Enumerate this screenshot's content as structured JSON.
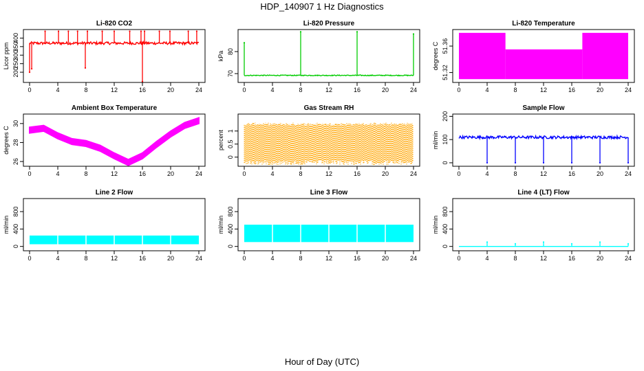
{
  "page": {
    "title": "HDP_140907  1 Hz Diagnostics",
    "xlabel": "Hour of Day (UTC)"
  },
  "chart_data": [
    {
      "type": "line",
      "title": "Li-820 CO2",
      "ylabel": "Licor ppm",
      "color": "#ff0000",
      "xlim": [
        0,
        24
      ],
      "ylim": [
        140,
        450
      ],
      "yticks": [
        200,
        250,
        300,
        350,
        400
      ],
      "baseline": 370,
      "noise": 8,
      "spikes": [
        {
          "x": 0.0,
          "y": 200
        },
        {
          "x": 0.3,
          "y": 220
        },
        {
          "x": 2.2,
          "y": 440
        },
        {
          "x": 4.1,
          "y": 440
        },
        {
          "x": 5.5,
          "y": 440
        },
        {
          "x": 6.8,
          "y": 440
        },
        {
          "x": 7.9,
          "y": 225
        },
        {
          "x": 8.2,
          "y": 440
        },
        {
          "x": 10.3,
          "y": 440
        },
        {
          "x": 12.0,
          "y": 440
        },
        {
          "x": 14.2,
          "y": 440
        },
        {
          "x": 15.8,
          "y": 440
        },
        {
          "x": 16.0,
          "y": 145
        },
        {
          "x": 16.3,
          "y": 440
        },
        {
          "x": 18.4,
          "y": 440
        },
        {
          "x": 19.9,
          "y": 440
        },
        {
          "x": 22.5,
          "y": 440
        },
        {
          "x": 23.7,
          "y": 440
        }
      ]
    },
    {
      "type": "line",
      "title": "Li-820 Pressure",
      "ylabel": "kPa",
      "color": "#00cc00",
      "xlim": [
        0,
        24
      ],
      "ylim": [
        66,
        90
      ],
      "yticks": [
        70,
        80
      ],
      "baseline": 69.2,
      "noise": 0.2,
      "spikes": [
        {
          "x": 0.0,
          "y": 84
        },
        {
          "x": 8.0,
          "y": 89
        },
        {
          "x": 16.0,
          "y": 89
        },
        {
          "x": 24.0,
          "y": 88
        }
      ]
    },
    {
      "type": "band",
      "title": "Li-820 Temperature",
      "ylabel": "degrees C",
      "color": "#ff00ff",
      "xlim": [
        0,
        24
      ],
      "ylim": [
        51.305,
        51.385
      ],
      "yticks": [
        51.32,
        51.36
      ],
      "segments": [
        {
          "x0": 0,
          "x1": 6.6,
          "low": 51.31,
          "high": 51.38
        },
        {
          "x0": 6.6,
          "x1": 17.5,
          "low": 51.31,
          "high": 51.355
        },
        {
          "x0": 17.5,
          "x1": 24,
          "low": 51.31,
          "high": 51.38
        }
      ]
    },
    {
      "type": "band",
      "title": "Ambient Box Temperature",
      "ylabel": "degrees C",
      "color": "#ff00ff",
      "xlim": [
        0,
        24
      ],
      "ylim": [
        25.5,
        31
      ],
      "yticks": [
        26,
        28,
        30
      ],
      "points": [
        {
          "x": 0,
          "y": 29.3
        },
        {
          "x": 2,
          "y": 29.5
        },
        {
          "x": 4,
          "y": 28.7
        },
        {
          "x": 6,
          "y": 28.1
        },
        {
          "x": 8,
          "y": 27.9
        },
        {
          "x": 10,
          "y": 27.4
        },
        {
          "x": 12,
          "y": 26.6
        },
        {
          "x": 14,
          "y": 25.9
        },
        {
          "x": 16,
          "y": 26.6
        },
        {
          "x": 18,
          "y": 27.8
        },
        {
          "x": 20,
          "y": 28.9
        },
        {
          "x": 22,
          "y": 29.8
        },
        {
          "x": 24,
          "y": 30.3
        }
      ],
      "halfwidth": 0.3
    },
    {
      "type": "band",
      "title": "Gas Stream RH",
      "ylabel": "percent",
      "color": "#ffa500",
      "xlim": [
        0,
        24
      ],
      "ylim": [
        -0.35,
        1.65
      ],
      "yticks": [
        0.0,
        0.5,
        1.0
      ],
      "segments": [
        {
          "x0": 0,
          "x1": 24,
          "low": -0.1,
          "high": 1.3
        }
      ],
      "noise": 0.2
    },
    {
      "type": "line",
      "title": "Sample Flow",
      "ylabel": "ml/min",
      "color": "#0000ff",
      "xlim": [
        0,
        24
      ],
      "ylim": [
        -15,
        210
      ],
      "yticks": [
        0,
        100,
        200
      ],
      "baseline": 110,
      "noise": 6,
      "spikes": [
        {
          "x": 4.0,
          "y": 0
        },
        {
          "x": 8.0,
          "y": 0
        },
        {
          "x": 12.0,
          "y": 0
        },
        {
          "x": 16.0,
          "y": 0
        },
        {
          "x": 20.0,
          "y": 0
        },
        {
          "x": 24.0,
          "y": 0
        }
      ]
    },
    {
      "type": "band",
      "title": "Line 2 Flow",
      "ylabel": "ml/min",
      "color": "#00ffff",
      "xlim": [
        0,
        24
      ],
      "ylim": [
        -100,
        1100
      ],
      "yticks": [
        0,
        400,
        800
      ],
      "segments": [
        {
          "x0": 0,
          "x1": 24,
          "low": 50,
          "high": 250
        }
      ],
      "gaps": [
        4,
        8,
        12,
        16,
        20
      ]
    },
    {
      "type": "band",
      "title": "Line 3 Flow",
      "ylabel": "ml/min",
      "color": "#00ffff",
      "xlim": [
        0,
        24
      ],
      "ylim": [
        -100,
        1100
      ],
      "yticks": [
        0,
        400,
        800
      ],
      "segments": [
        {
          "x0": 0,
          "x1": 24,
          "low": 100,
          "high": 500
        }
      ],
      "gaps": [
        4,
        8,
        12,
        16,
        20
      ]
    },
    {
      "type": "line",
      "title": "Line 4 (LT) Flow",
      "ylabel": "ml/min",
      "color": "#00ffff",
      "xlim": [
        0,
        24
      ],
      "ylim": [
        -100,
        1100
      ],
      "yticks": [
        0,
        400,
        800
      ],
      "baseline": 0,
      "noise": 0,
      "spikes": [
        {
          "x": 4.0,
          "y": 100
        },
        {
          "x": 8.0,
          "y": 60
        },
        {
          "x": 12.0,
          "y": 100
        },
        {
          "x": 16.0,
          "y": 60
        },
        {
          "x": 20.0,
          "y": 100
        },
        {
          "x": 24.0,
          "y": 60
        }
      ]
    }
  ],
  "xticks": [
    0,
    4,
    8,
    12,
    16,
    20,
    24
  ]
}
